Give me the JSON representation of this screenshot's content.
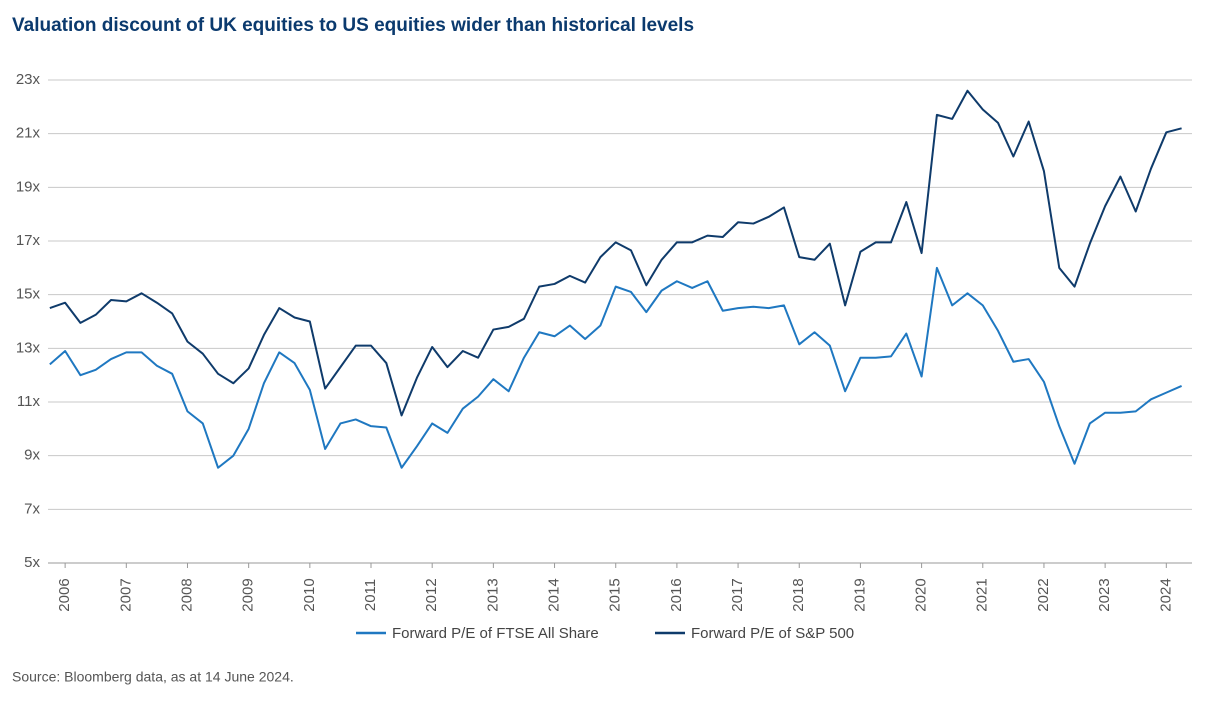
{
  "chart_data": {
    "type": "line",
    "title": "Valuation discount of UK equities to US equities wider than historical levels",
    "source": "Source: Bloomberg data, as at 14 June 2024.",
    "x": [
      2005.75,
      2006,
      2006.25,
      2006.5,
      2006.75,
      2007,
      2007.25,
      2007.5,
      2007.75,
      2008,
      2008.25,
      2008.5,
      2008.75,
      2009,
      2009.25,
      2009.5,
      2009.75,
      2010,
      2010.25,
      2010.5,
      2010.75,
      2011,
      2011.25,
      2011.5,
      2011.75,
      2012,
      2012.25,
      2012.5,
      2012.75,
      2013,
      2013.25,
      2013.5,
      2013.75,
      2014,
      2014.25,
      2014.5,
      2014.75,
      2015,
      2015.25,
      2015.5,
      2015.75,
      2016,
      2016.25,
      2016.5,
      2016.75,
      2017,
      2017.25,
      2017.5,
      2017.75,
      2018,
      2018.25,
      2018.5,
      2018.75,
      2019,
      2019.25,
      2019.5,
      2019.75,
      2020,
      2020.25,
      2020.5,
      2020.75,
      2021,
      2021.25,
      2021.5,
      2021.75,
      2022,
      2022.25,
      2022.5,
      2022.75,
      2023,
      2023.25,
      2023.5,
      2023.75,
      2024,
      2024.25
    ],
    "series": [
      {
        "name": "Forward P/E of FTSE All Share",
        "color": "#1f78c1",
        "values": [
          12.4,
          12.9,
          12.0,
          12.2,
          12.6,
          12.85,
          12.85,
          12.35,
          12.05,
          10.65,
          10.2,
          8.55,
          9.0,
          10.0,
          11.7,
          12.85,
          12.45,
          11.45,
          9.25,
          10.2,
          10.35,
          10.1,
          10.05,
          8.55,
          9.35,
          10.2,
          9.85,
          10.75,
          11.2,
          11.85,
          11.4,
          12.65,
          13.6,
          13.45,
          13.85,
          13.35,
          13.85,
          15.3,
          15.1,
          14.35,
          15.15,
          15.5,
          15.25,
          15.5,
          14.4,
          14.5,
          14.55,
          14.5,
          14.6,
          13.15,
          13.6,
          13.1,
          11.4,
          12.65,
          12.65,
          12.7,
          13.55,
          11.95,
          16.0,
          14.6,
          15.05,
          14.6,
          13.65,
          12.5,
          12.6,
          11.75,
          10.1,
          8.7,
          10.2,
          10.6,
          10.6,
          10.65,
          11.1,
          11.35,
          11.6
        ]
      },
      {
        "name": "Forward P/E of S&P 500",
        "color": "#0f3b6b",
        "values": [
          14.5,
          14.7,
          13.95,
          14.25,
          14.8,
          14.75,
          15.05,
          14.7,
          14.3,
          13.25,
          12.8,
          12.05,
          11.7,
          12.25,
          13.5,
          14.5,
          14.15,
          14.0,
          11.5,
          12.3,
          13.1,
          13.1,
          12.45,
          10.5,
          11.9,
          13.05,
          12.3,
          12.9,
          12.65,
          13.7,
          13.8,
          14.1,
          15.3,
          15.4,
          15.7,
          15.45,
          16.4,
          16.95,
          16.65,
          15.35,
          16.3,
          16.95,
          16.95,
          17.2,
          17.15,
          17.7,
          17.65,
          17.9,
          18.25,
          16.4,
          16.3,
          16.9,
          14.6,
          16.6,
          16.95,
          16.95,
          18.45,
          16.55,
          21.7,
          21.55,
          22.6,
          21.9,
          21.4,
          20.15,
          21.45,
          19.6,
          16.0,
          15.3,
          16.9,
          18.3,
          19.4,
          18.1,
          19.7,
          21.05,
          21.2
        ]
      }
    ],
    "xlim": [
      2005.72,
      2024.42
    ],
    "xticks": [
      2006,
      2007,
      2008,
      2009,
      2010,
      2011,
      2012,
      2013,
      2014,
      2015,
      2016,
      2017,
      2018,
      2019,
      2020,
      2021,
      2022,
      2023,
      2024
    ],
    "ylim": [
      5,
      23
    ],
    "yticks": [
      {
        "value": 5,
        "label": "5x"
      },
      {
        "value": 7,
        "label": "7x"
      },
      {
        "value": 9,
        "label": "9x"
      },
      {
        "value": 11,
        "label": "11x"
      },
      {
        "value": 13,
        "label": "13x"
      },
      {
        "value": 15,
        "label": "15x"
      },
      {
        "value": 17,
        "label": "17x"
      },
      {
        "value": 19,
        "label": "19x"
      },
      {
        "value": 21,
        "label": "21x"
      },
      {
        "value": 23,
        "label": "23x"
      }
    ],
    "grid": true,
    "legend": "bottom"
  }
}
